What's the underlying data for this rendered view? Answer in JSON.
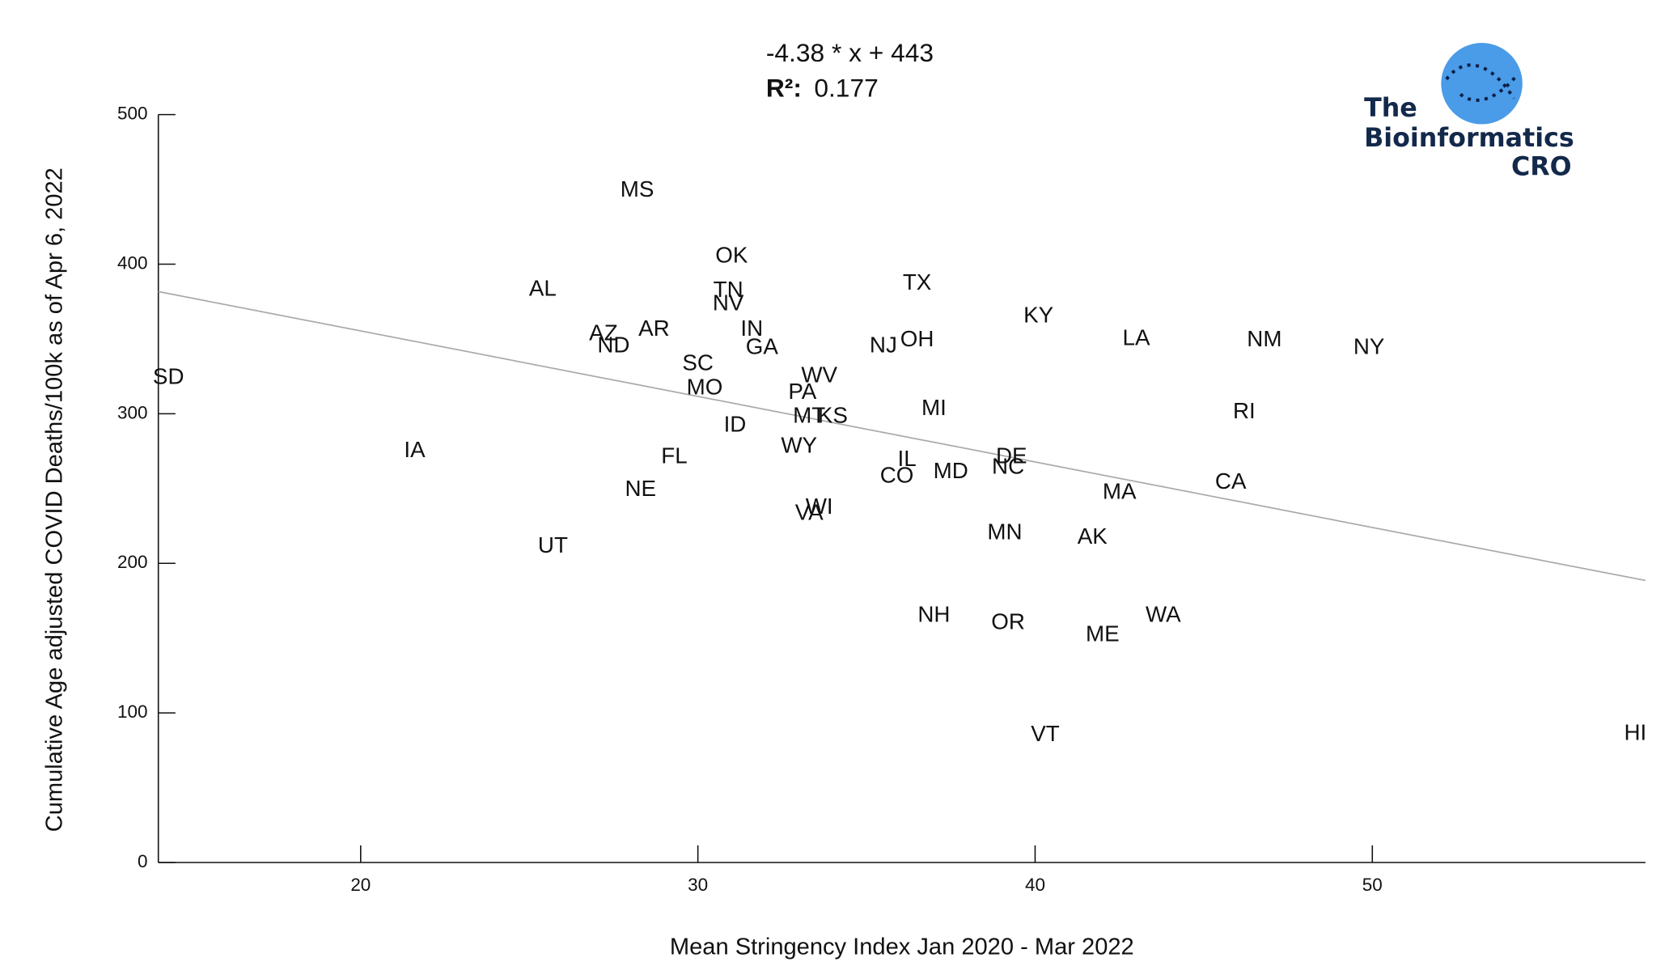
{
  "chart_data": {
    "type": "scatter",
    "xlabel": "Mean Stringency Index Jan 2020 - Mar 2022",
    "ylabel": "Cumulative Age adjusted COVID Deaths/100k as of Apr 6, 2022",
    "categories": [
      "MS",
      "OK",
      "AL",
      "TN",
      "NV",
      "TX",
      "AZ",
      "AR",
      "ND",
      "IN",
      "GA",
      "KY",
      "LA",
      "NM",
      "NY",
      "NJ",
      "OH",
      "SD",
      "SC",
      "MO",
      "WV",
      "PA",
      "MT",
      "KS",
      "MI",
      "RI",
      "ID",
      "IA",
      "WY",
      "FL",
      "DE",
      "NC",
      "IL",
      "CO",
      "MD",
      "CA",
      "MA",
      "NE",
      "VA",
      "WI",
      "UT",
      "MN",
      "AK",
      "NH",
      "OR",
      "WA",
      "ME",
      "VT",
      "HI"
    ],
    "x": [
      28.2,
      31.0,
      25.4,
      30.9,
      30.9,
      36.5,
      27.2,
      28.7,
      27.5,
      31.6,
      31.9,
      40.1,
      43.0,
      46.8,
      49.9,
      35.5,
      36.5,
      14.3,
      30.0,
      30.2,
      33.6,
      33.1,
      33.3,
      34.0,
      37.0,
      46.2,
      31.1,
      21.6,
      33.0,
      29.3,
      39.3,
      39.2,
      36.2,
      35.9,
      37.5,
      45.8,
      42.5,
      28.3,
      33.3,
      33.6,
      25.7,
      39.1,
      41.7,
      37.0,
      39.2,
      43.8,
      42.0,
      40.3,
      57.8
    ],
    "values": [
      449,
      405,
      383,
      382,
      373,
      387,
      353,
      356,
      345,
      356,
      344,
      365,
      350,
      349,
      344,
      345,
      349,
      324,
      333,
      317,
      325,
      314,
      298,
      298,
      303,
      301,
      292,
      275,
      278,
      271,
      271,
      264,
      269,
      258,
      261,
      254,
      247,
      249,
      233,
      237,
      211,
      220,
      217,
      165,
      160,
      165,
      152,
      85,
      86
    ],
    "color": "#111111",
    "xlim": [
      14,
      58.1
    ],
    "xticks": [
      20,
      30,
      40,
      50
    ],
    "ylim": [
      0,
      500
    ],
    "yticks": [
      0,
      100,
      200,
      300,
      400,
      500
    ],
    "trendline": {
      "label": "-4.38 * x + 443",
      "slope": -4.38,
      "intercept": 443,
      "color": "#aaaaaa",
      "r2_label": "R²:",
      "r2": 0.177
    },
    "logo": {
      "line1": "The",
      "line2": "Bioinformatics",
      "line3": "CRO"
    }
  }
}
